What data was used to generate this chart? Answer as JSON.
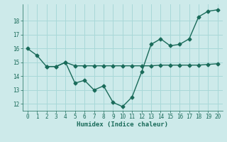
{
  "line1_x": [
    0,
    1,
    2,
    3,
    4,
    5,
    6,
    7,
    8,
    9,
    10,
    11,
    12,
    13,
    14,
    15,
    16,
    17,
    18,
    19,
    20
  ],
  "line1_y": [
    16.0,
    15.5,
    14.7,
    14.7,
    15.0,
    13.5,
    13.7,
    13.0,
    13.3,
    12.1,
    11.8,
    12.5,
    14.3,
    16.3,
    16.7,
    16.2,
    16.3,
    16.7,
    18.3,
    18.7,
    18.8
  ],
  "line2_x": [
    2,
    3,
    4,
    5,
    6,
    7,
    8,
    9,
    10,
    11,
    12,
    13,
    14,
    15,
    16,
    17,
    18,
    19,
    20
  ],
  "line2_y": [
    14.7,
    14.7,
    15.0,
    14.75,
    14.75,
    14.75,
    14.75,
    14.75,
    14.75,
    14.75,
    14.75,
    14.75,
    14.8,
    14.8,
    14.8,
    14.8,
    14.8,
    14.85,
    14.9
  ],
  "color": "#1a6b5a",
  "bg_color": "#cdeaea",
  "grid_color": "#a8d8d8",
  "xlabel": "Humidex (Indice chaleur)",
  "ylim": [
    11.5,
    19.2
  ],
  "xlim": [
    -0.5,
    20.5
  ],
  "yticks": [
    12,
    13,
    14,
    15,
    16,
    17,
    18
  ],
  "xticks": [
    0,
    1,
    2,
    3,
    4,
    5,
    6,
    7,
    8,
    9,
    10,
    11,
    12,
    13,
    14,
    15,
    16,
    17,
    18,
    19,
    20
  ],
  "marker": "D",
  "markersize": 2.5,
  "linewidth": 1.0
}
